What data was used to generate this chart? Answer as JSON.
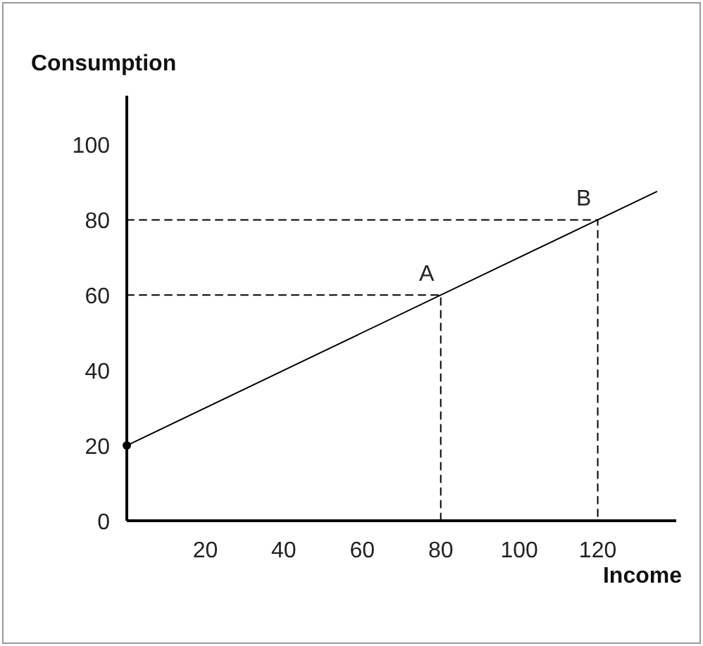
{
  "chart_data": {
    "type": "line",
    "xlabel": "Income",
    "ylabel": "Consumption",
    "xlim": [
      0,
      140
    ],
    "ylim": [
      0,
      113
    ],
    "xticks": [
      20,
      40,
      60,
      80,
      100,
      120
    ],
    "yticks": [
      0,
      20,
      40,
      60,
      80,
      100
    ],
    "grid": false,
    "series": [
      {
        "color": "#000000",
        "x": [
          0,
          135
        ],
        "values": [
          20,
          87.5
        ],
        "line_style": "solid",
        "marker": "none"
      },
      {
        "type": "scatter",
        "color": "#000000",
        "x": [
          0
        ],
        "values": [
          20
        ],
        "marker": "circle"
      },
      {
        "color": "#000000",
        "x": [
          0,
          80,
          80
        ],
        "values": [
          60,
          60,
          0
        ],
        "line_style": "dashed",
        "marker": "none"
      },
      {
        "color": "#000000",
        "x": [
          0,
          120,
          120
        ],
        "values": [
          80,
          80,
          0
        ],
        "line_style": "dashed",
        "marker": "none"
      }
    ],
    "annotations": [
      {
        "text": "A",
        "x": 80,
        "y": 60
      },
      {
        "text": "B",
        "x": 120,
        "y": 80
      }
    ]
  }
}
